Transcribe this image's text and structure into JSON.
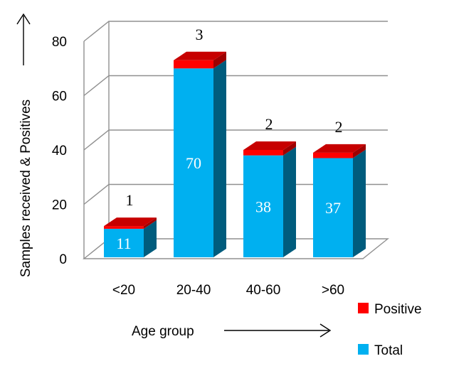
{
  "chart_data": {
    "type": "bar",
    "stacked": true,
    "three_d": true,
    "categories": [
      "<20",
      "20-40",
      "40-60",
      ">60"
    ],
    "series": [
      {
        "name": "Total",
        "values": [
          11,
          70,
          38,
          37
        ],
        "color": "#00B0F0"
      },
      {
        "name": "Positive",
        "values": [
          1,
          3,
          2,
          2
        ],
        "color": "#FF0000"
      }
    ],
    "total_labels": [
      "11",
      "70",
      "38",
      "37"
    ],
    "positive_labels": [
      "1",
      "3",
      "2",
      "2"
    ],
    "xlabel": "Age group",
    "ylabel": "Samples received & Positives",
    "ylim": [
      0,
      80
    ],
    "yticks": [
      "0",
      "20",
      "40",
      "60",
      "80"
    ],
    "grid": true,
    "legend_position": "bottom-right"
  }
}
